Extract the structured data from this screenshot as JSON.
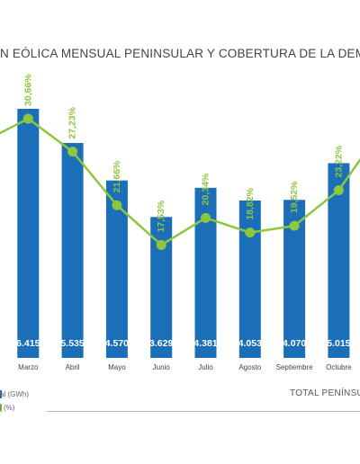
{
  "title": "N EÓLICA MENSUAL PENINSULAR Y COBERTURA DE LA DEM",
  "legend": {
    "energy_label": "al (GWh)",
    "coverage_label": "l (%)"
  },
  "total_label": "TOTAL PENÍNSU",
  "colors": {
    "bar": "#1b6fb8",
    "line": "#8dc63f",
    "bar_text": "#ffffff",
    "axis_text": "#444444"
  },
  "chart_data": {
    "type": "bar",
    "categories": [
      "",
      "Marzo",
      "Abril",
      "Mayo",
      "Junio",
      "Julio",
      "Agosto",
      "Septiembre",
      "Octubre",
      ""
    ],
    "series": [
      {
        "values": [
          null,
          6415,
          5535,
          4570,
          3629,
          4381,
          4053,
          4070,
          5015,
          null
        ],
        "labels": [
          "",
          "6.415",
          "5.535",
          "4.570",
          "3.629",
          "4.381",
          "4.053",
          "4.070",
          "5.015",
          ""
        ]
      },
      {
        "values": [
          null,
          30.66,
          27.23,
          21.66,
          17.53,
          20.34,
          18.82,
          19.52,
          23.22,
          null
        ],
        "labels": [
          "",
          "30,66%",
          "27,23%",
          "21,66%",
          "17,53%",
          "20,34%",
          "18,82%",
          "19,52%",
          "23,22%",
          ""
        ]
      }
    ],
    "line_edge_values": {
      "left": 28.3,
      "right": 29.8
    }
  }
}
